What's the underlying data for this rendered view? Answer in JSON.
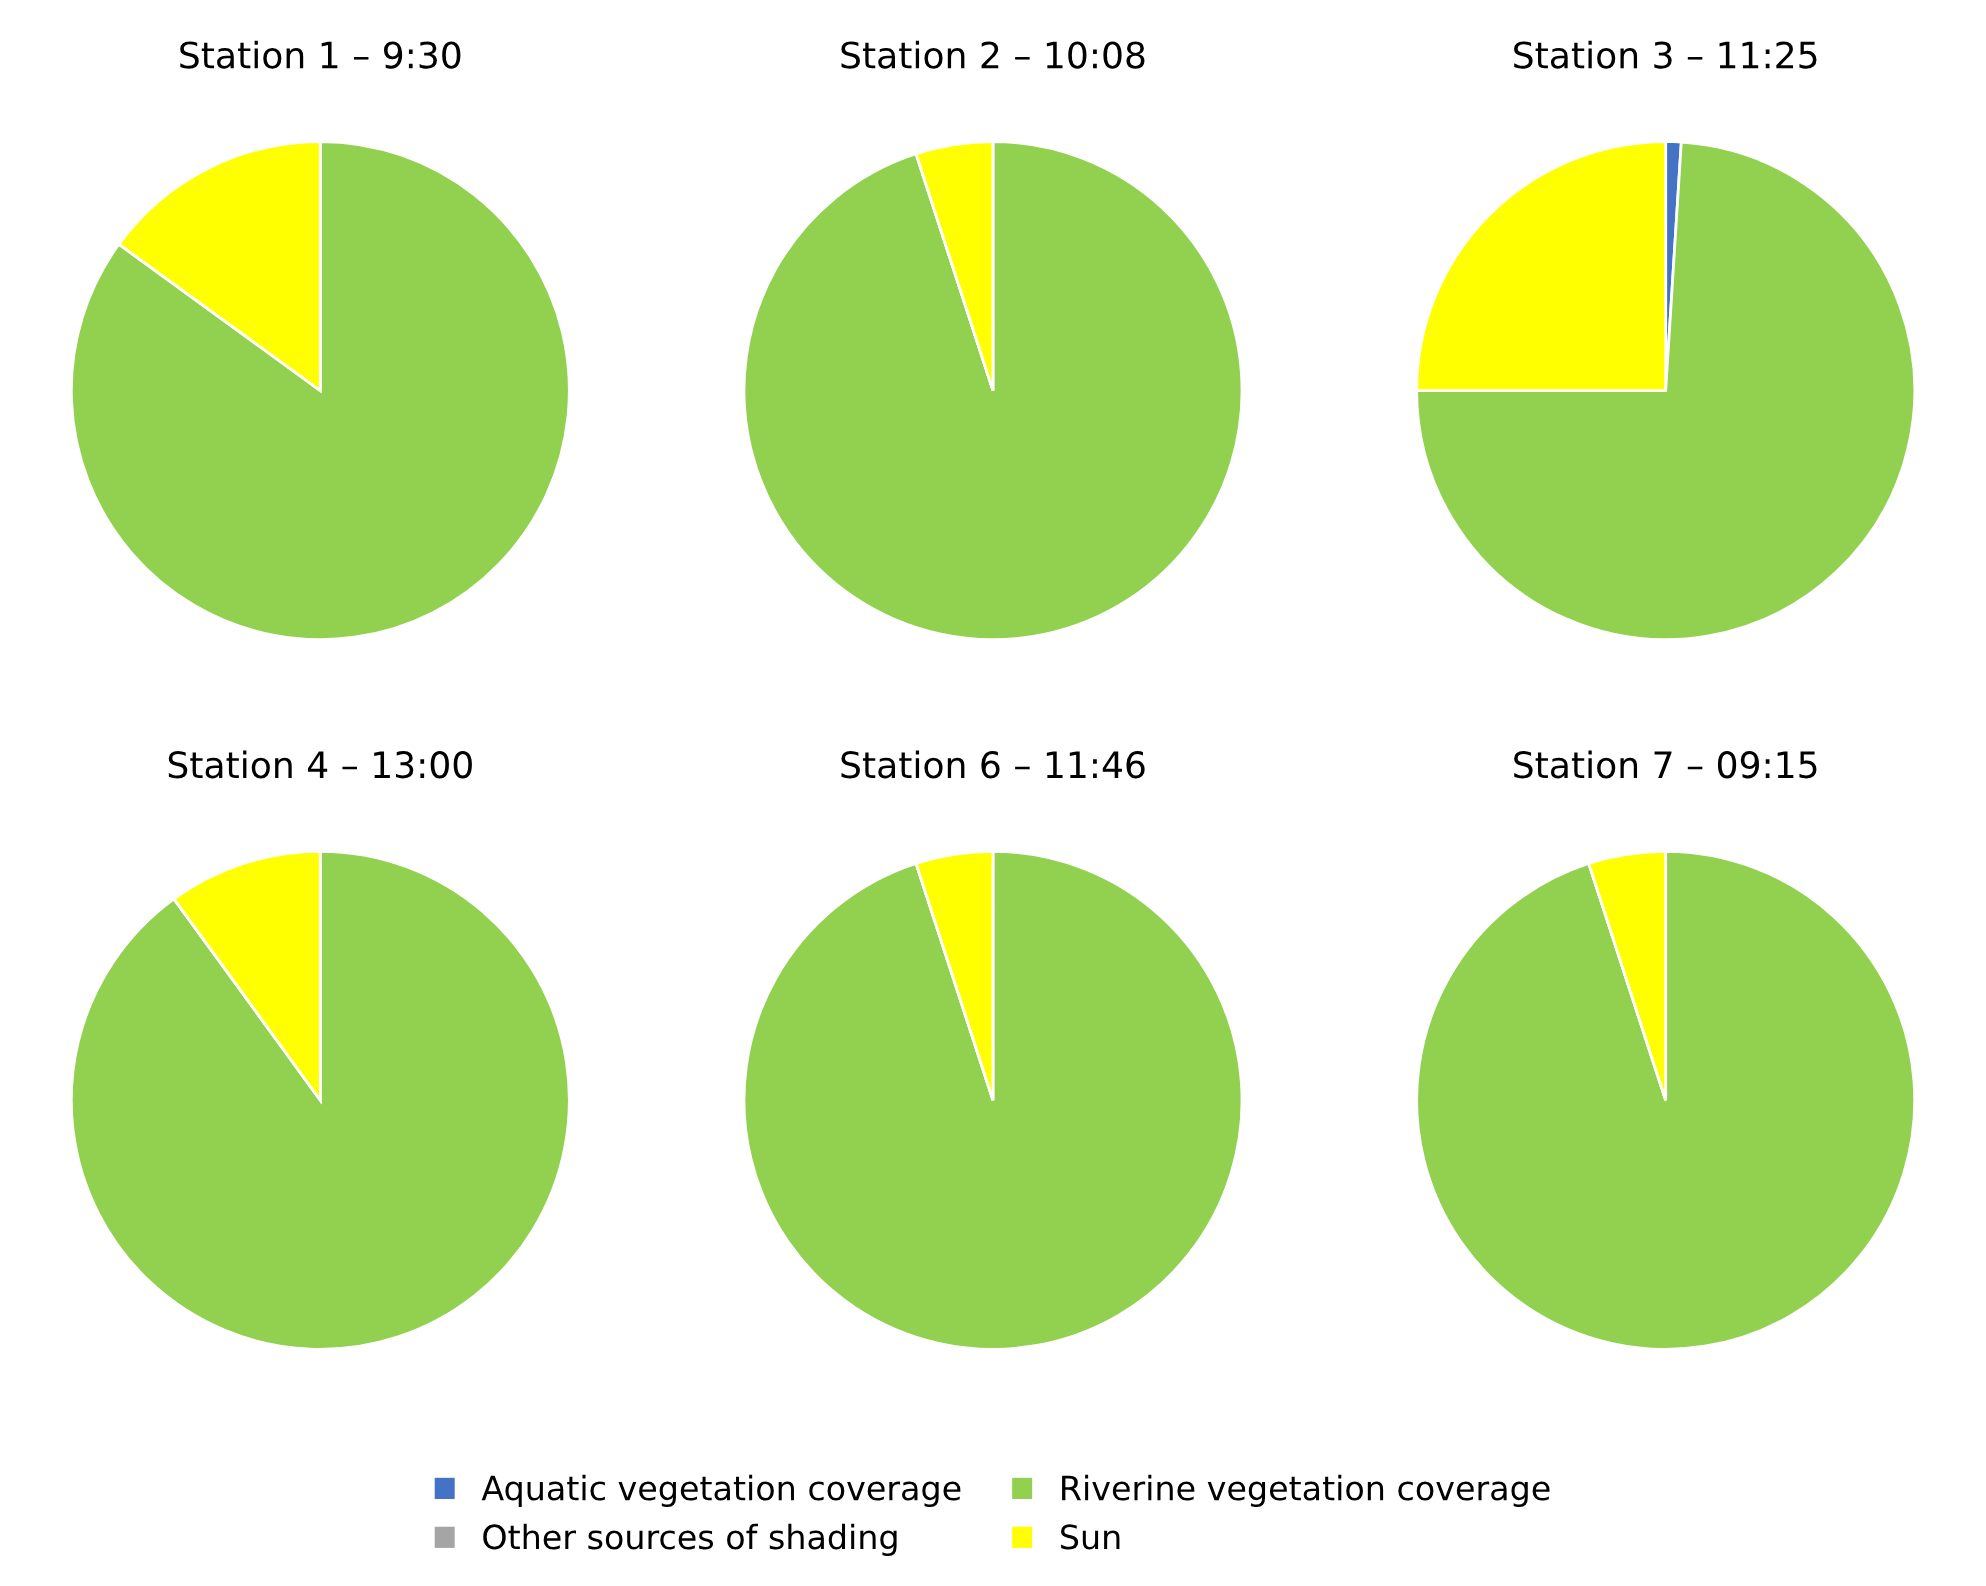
{
  "chart_data": [
    {
      "type": "pie",
      "title": "Station 1 – 9:30",
      "categories": [
        "Aquatic vegetation coverage",
        "Riverine vegetation coverage",
        "Other sources of shading",
        "Sun"
      ],
      "values": [
        0,
        85,
        0,
        15
      ],
      "colors": [
        "#4472c4",
        "#92d050",
        "#a5a5a5",
        "#ffff00"
      ],
      "legend": "bottom"
    },
    {
      "type": "pie",
      "title": "Station 2 – 10:08",
      "categories": [
        null,
        null,
        null,
        null
      ],
      "values": [
        0,
        95,
        0,
        5
      ],
      "colors": [
        "#4472c4",
        "#92d050",
        "#a5a5a5",
        "#ffff00"
      ]
    },
    {
      "type": "pie",
      "title": "Station 3 – 11:25",
      "categories": [
        null,
        null,
        null,
        null
      ],
      "values": [
        1,
        74,
        0,
        25
      ],
      "colors": [
        "#4472c4",
        "#92d050",
        "#a5a5a5",
        "#ffff00"
      ]
    },
    {
      "type": "pie",
      "title": "Station 4 – 13:00",
      "categories": [
        null,
        null,
        null,
        null
      ],
      "values": [
        0,
        90,
        0,
        10
      ],
      "colors": [
        "#4472c4",
        "#92d050",
        "#a5a5a5",
        "#ffff00"
      ]
    },
    {
      "type": "pie",
      "title": "Station 6 – 11:46",
      "categories": [
        null,
        null,
        null,
        null
      ],
      "values": [
        0,
        95,
        0,
        5
      ],
      "colors": [
        "#4472c4",
        "#92d050",
        "#a5a5a5",
        "#ffff00"
      ]
    },
    {
      "type": "pie",
      "title": "Station 7 – 09:15",
      "categories": [
        null,
        null,
        null,
        null
      ],
      "values": [
        0,
        95,
        0,
        5
      ],
      "colors": [
        "#4472c4",
        "#92d050",
        "#a5a5a5",
        "#ffff00"
      ]
    }
  ]
}
